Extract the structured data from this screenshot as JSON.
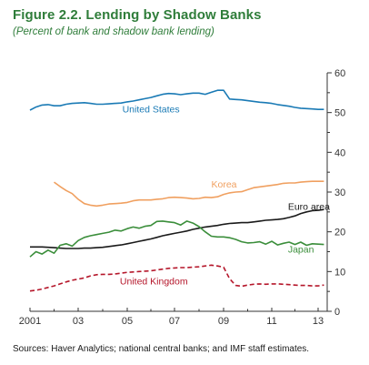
{
  "title": "Figure 2.2. Lending by Shadow Banks",
  "subtitle": "(Percent of bank and shadow bank lending)",
  "source": "Sources: Haver Analytics; national central banks; and IMF staff estimates.",
  "chart_data": {
    "type": "line",
    "title": "Figure 2.2. Lending by Shadow Banks",
    "subtitle": "(Percent of bank and shadow bank lending)",
    "xlabel": "",
    "ylabel": "",
    "xlim": [
      2001,
      2013.5
    ],
    "ylim": [
      0,
      60
    ],
    "x_ticks": [
      2001,
      2003,
      2005,
      2007,
      2009,
      2011,
      2013
    ],
    "x_tick_labels": [
      "2001",
      "03",
      "05",
      "07",
      "09",
      "11",
      "13"
    ],
    "y_ticks": [
      0,
      10,
      20,
      30,
      40,
      50,
      60
    ],
    "y_tick_labels": [
      "0",
      "10",
      "20",
      "30",
      "40",
      "50",
      "60"
    ],
    "y_axis_side": "right",
    "grid": false,
    "legend": "inline labels",
    "series": [
      {
        "name": "United States",
        "color": "#1a7ab5",
        "dash": "solid",
        "label_anchor": [
          2004.8,
          50
        ],
        "points": [
          [
            2001.0,
            50.6
          ],
          [
            2001.25,
            51.4
          ],
          [
            2001.5,
            51.9
          ],
          [
            2001.75,
            52.0
          ],
          [
            2002.0,
            51.7
          ],
          [
            2002.25,
            51.7
          ],
          [
            2002.5,
            52.1
          ],
          [
            2002.75,
            52.3
          ],
          [
            2003.0,
            52.4
          ],
          [
            2003.25,
            52.5
          ],
          [
            2003.5,
            52.3
          ],
          [
            2003.75,
            52.1
          ],
          [
            2004.0,
            52.1
          ],
          [
            2004.25,
            52.2
          ],
          [
            2004.5,
            52.3
          ],
          [
            2004.75,
            52.4
          ],
          [
            2005.0,
            52.7
          ],
          [
            2005.25,
            52.9
          ],
          [
            2005.5,
            53.2
          ],
          [
            2005.75,
            53.5
          ],
          [
            2006.0,
            53.8
          ],
          [
            2006.25,
            54.2
          ],
          [
            2006.5,
            54.6
          ],
          [
            2006.75,
            54.8
          ],
          [
            2007.0,
            54.7
          ],
          [
            2007.25,
            54.5
          ],
          [
            2007.5,
            54.7
          ],
          [
            2007.75,
            54.9
          ],
          [
            2008.0,
            54.9
          ],
          [
            2008.25,
            54.6
          ],
          [
            2008.5,
            55.1
          ],
          [
            2008.75,
            55.6
          ],
          [
            2009.0,
            55.6
          ],
          [
            2009.25,
            53.4
          ],
          [
            2009.5,
            53.3
          ],
          [
            2009.75,
            53.2
          ],
          [
            2010.0,
            53.0
          ],
          [
            2010.25,
            52.8
          ],
          [
            2010.5,
            52.6
          ],
          [
            2010.75,
            52.5
          ],
          [
            2011.0,
            52.3
          ],
          [
            2011.25,
            52.0
          ],
          [
            2011.5,
            51.8
          ],
          [
            2011.75,
            51.6
          ],
          [
            2012.0,
            51.3
          ],
          [
            2012.25,
            51.1
          ],
          [
            2012.5,
            51.0
          ],
          [
            2012.75,
            50.9
          ],
          [
            2013.0,
            50.8
          ],
          [
            2013.25,
            50.8
          ]
        ]
      },
      {
        "name": "Korea",
        "color": "#f0a060",
        "dash": "solid",
        "label_anchor": [
          2008.5,
          31.2
        ],
        "points": [
          [
            2002.0,
            32.5
          ],
          [
            2002.25,
            31.4
          ],
          [
            2002.5,
            30.4
          ],
          [
            2002.75,
            29.6
          ],
          [
            2003.0,
            28.2
          ],
          [
            2003.25,
            27.1
          ],
          [
            2003.5,
            26.7
          ],
          [
            2003.75,
            26.5
          ],
          [
            2004.0,
            26.7
          ],
          [
            2004.25,
            27.0
          ],
          [
            2004.5,
            27.1
          ],
          [
            2004.75,
            27.2
          ],
          [
            2005.0,
            27.4
          ],
          [
            2005.25,
            27.8
          ],
          [
            2005.5,
            28.0
          ],
          [
            2005.75,
            28.0
          ],
          [
            2006.0,
            28.0
          ],
          [
            2006.25,
            28.2
          ],
          [
            2006.5,
            28.3
          ],
          [
            2006.75,
            28.6
          ],
          [
            2007.0,
            28.7
          ],
          [
            2007.25,
            28.6
          ],
          [
            2007.5,
            28.5
          ],
          [
            2007.75,
            28.3
          ],
          [
            2008.0,
            28.4
          ],
          [
            2008.25,
            28.7
          ],
          [
            2008.5,
            28.6
          ],
          [
            2008.75,
            28.8
          ],
          [
            2009.0,
            29.4
          ],
          [
            2009.25,
            29.8
          ],
          [
            2009.5,
            30.0
          ],
          [
            2009.75,
            30.1
          ],
          [
            2010.0,
            30.6
          ],
          [
            2010.25,
            31.1
          ],
          [
            2010.5,
            31.3
          ],
          [
            2010.75,
            31.5
          ],
          [
            2011.0,
            31.7
          ],
          [
            2011.25,
            31.9
          ],
          [
            2011.5,
            32.2
          ],
          [
            2011.75,
            32.3
          ],
          [
            2012.0,
            32.3
          ],
          [
            2012.25,
            32.5
          ],
          [
            2012.5,
            32.6
          ],
          [
            2012.75,
            32.7
          ],
          [
            2013.0,
            32.7
          ],
          [
            2013.25,
            32.7
          ]
        ]
      },
      {
        "name": "Euro area",
        "color": "#1a1a1a",
        "dash": "solid",
        "label_anchor": [
          2011.7,
          25.5
        ],
        "points": [
          [
            2001.0,
            16.2
          ],
          [
            2001.25,
            16.2
          ],
          [
            2001.5,
            16.2
          ],
          [
            2001.75,
            16.1
          ],
          [
            2002.0,
            16.0
          ],
          [
            2002.25,
            15.9
          ],
          [
            2002.5,
            15.8
          ],
          [
            2002.75,
            15.8
          ],
          [
            2003.0,
            15.8
          ],
          [
            2003.25,
            15.9
          ],
          [
            2003.5,
            15.9
          ],
          [
            2003.75,
            16.0
          ],
          [
            2004.0,
            16.1
          ],
          [
            2004.25,
            16.3
          ],
          [
            2004.5,
            16.5
          ],
          [
            2004.75,
            16.7
          ],
          [
            2005.0,
            17.0
          ],
          [
            2005.25,
            17.3
          ],
          [
            2005.5,
            17.6
          ],
          [
            2005.75,
            17.9
          ],
          [
            2006.0,
            18.2
          ],
          [
            2006.25,
            18.6
          ],
          [
            2006.5,
            19.0
          ],
          [
            2006.75,
            19.3
          ],
          [
            2007.0,
            19.6
          ],
          [
            2007.25,
            19.9
          ],
          [
            2007.5,
            20.2
          ],
          [
            2007.75,
            20.6
          ],
          [
            2008.0,
            20.9
          ],
          [
            2008.25,
            21.2
          ],
          [
            2008.5,
            21.4
          ],
          [
            2008.75,
            21.6
          ],
          [
            2009.0,
            21.9
          ],
          [
            2009.25,
            22.1
          ],
          [
            2009.5,
            22.2
          ],
          [
            2009.75,
            22.3
          ],
          [
            2010.0,
            22.3
          ],
          [
            2010.25,
            22.5
          ],
          [
            2010.5,
            22.7
          ],
          [
            2010.75,
            22.9
          ],
          [
            2011.0,
            23.0
          ],
          [
            2011.25,
            23.1
          ],
          [
            2011.5,
            23.3
          ],
          [
            2011.75,
            23.6
          ],
          [
            2012.0,
            24.0
          ],
          [
            2012.25,
            24.6
          ],
          [
            2012.5,
            25.0
          ],
          [
            2012.75,
            25.3
          ],
          [
            2013.0,
            25.4
          ],
          [
            2013.25,
            25.6
          ]
        ]
      },
      {
        "name": "Japan",
        "color": "#3b8e3b",
        "dash": "solid",
        "label_anchor": [
          2011.7,
          14.8
        ],
        "points": [
          [
            2001.0,
            13.7
          ],
          [
            2001.25,
            15.0
          ],
          [
            2001.5,
            14.4
          ],
          [
            2001.75,
            15.4
          ],
          [
            2002.0,
            14.6
          ],
          [
            2002.25,
            16.6
          ],
          [
            2002.5,
            17.0
          ],
          [
            2002.75,
            16.4
          ],
          [
            2003.0,
            17.8
          ],
          [
            2003.25,
            18.6
          ],
          [
            2003.5,
            19.0
          ],
          [
            2003.75,
            19.3
          ],
          [
            2004.0,
            19.6
          ],
          [
            2004.25,
            19.9
          ],
          [
            2004.5,
            20.4
          ],
          [
            2004.75,
            20.2
          ],
          [
            2005.0,
            20.8
          ],
          [
            2005.25,
            21.2
          ],
          [
            2005.5,
            20.9
          ],
          [
            2005.75,
            21.4
          ],
          [
            2006.0,
            21.6
          ],
          [
            2006.25,
            22.6
          ],
          [
            2006.5,
            22.7
          ],
          [
            2006.75,
            22.5
          ],
          [
            2007.0,
            22.3
          ],
          [
            2007.25,
            21.7
          ],
          [
            2007.5,
            22.7
          ],
          [
            2007.75,
            22.2
          ],
          [
            2008.0,
            21.3
          ],
          [
            2008.25,
            20.0
          ],
          [
            2008.5,
            18.9
          ],
          [
            2008.75,
            18.7
          ],
          [
            2009.0,
            18.7
          ],
          [
            2009.25,
            18.5
          ],
          [
            2009.5,
            18.1
          ],
          [
            2009.75,
            17.5
          ],
          [
            2010.0,
            17.2
          ],
          [
            2010.25,
            17.3
          ],
          [
            2010.5,
            17.5
          ],
          [
            2010.75,
            16.9
          ],
          [
            2011.0,
            17.6
          ],
          [
            2011.25,
            16.7
          ],
          [
            2011.5,
            17.1
          ],
          [
            2011.75,
            17.4
          ],
          [
            2012.0,
            16.8
          ],
          [
            2012.25,
            17.4
          ],
          [
            2012.5,
            16.6
          ],
          [
            2012.75,
            17.0
          ],
          [
            2013.0,
            16.9
          ],
          [
            2013.25,
            16.8
          ]
        ]
      },
      {
        "name": "United Kingdom",
        "color": "#b5172b",
        "dash": "dashed",
        "label_anchor": [
          2004.7,
          6.7
        ],
        "points": [
          [
            2001.0,
            5.1
          ],
          [
            2001.25,
            5.3
          ],
          [
            2001.5,
            5.6
          ],
          [
            2001.75,
            6.0
          ],
          [
            2002.0,
            6.4
          ],
          [
            2002.25,
            6.9
          ],
          [
            2002.5,
            7.4
          ],
          [
            2002.75,
            7.8
          ],
          [
            2003.0,
            8.1
          ],
          [
            2003.25,
            8.4
          ],
          [
            2003.5,
            8.9
          ],
          [
            2003.75,
            9.2
          ],
          [
            2004.0,
            9.3
          ],
          [
            2004.25,
            9.3
          ],
          [
            2004.5,
            9.4
          ],
          [
            2004.75,
            9.6
          ],
          [
            2005.0,
            9.8
          ],
          [
            2005.25,
            9.9
          ],
          [
            2005.5,
            10.0
          ],
          [
            2005.75,
            10.1
          ],
          [
            2006.0,
            10.2
          ],
          [
            2006.25,
            10.4
          ],
          [
            2006.5,
            10.6
          ],
          [
            2006.75,
            10.8
          ],
          [
            2007.0,
            10.9
          ],
          [
            2007.25,
            11.0
          ],
          [
            2007.5,
            11.0
          ],
          [
            2007.75,
            11.1
          ],
          [
            2008.0,
            11.2
          ],
          [
            2008.25,
            11.4
          ],
          [
            2008.5,
            11.6
          ],
          [
            2008.75,
            11.4
          ],
          [
            2009.0,
            11.1
          ],
          [
            2009.25,
            8.2
          ],
          [
            2009.5,
            6.5
          ],
          [
            2009.75,
            6.3
          ],
          [
            2010.0,
            6.6
          ],
          [
            2010.25,
            6.8
          ],
          [
            2010.5,
            6.9
          ],
          [
            2010.75,
            6.8
          ],
          [
            2011.0,
            6.9
          ],
          [
            2011.25,
            6.9
          ],
          [
            2011.5,
            6.8
          ],
          [
            2011.75,
            6.7
          ],
          [
            2012.0,
            6.6
          ],
          [
            2012.25,
            6.5
          ],
          [
            2012.5,
            6.5
          ],
          [
            2012.75,
            6.4
          ],
          [
            2013.0,
            6.4
          ],
          [
            2013.25,
            6.6
          ]
        ]
      }
    ]
  }
}
